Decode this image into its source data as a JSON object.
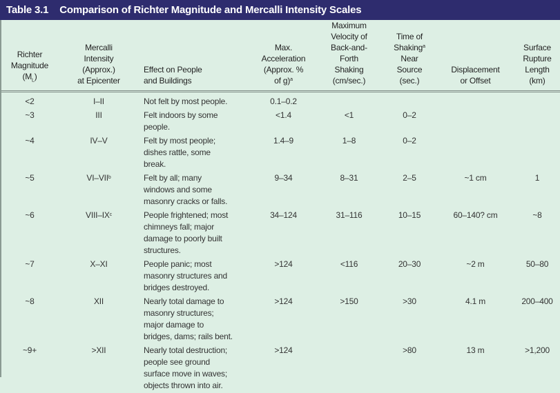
{
  "title": {
    "number": "Table 3.1",
    "text": "Comparison of Richter Magnitude and Mercalli Intensity Scales"
  },
  "headers": [
    {
      "label": "Richter\nMagnitude\n(M",
      "sub": "L",
      "after": ")"
    },
    {
      "label": "Mercalli\nIntensity\n(Approx.)\nat Epicenter"
    },
    {
      "label": "Effect on People\nand Buildings"
    },
    {
      "label": "Max.\nAcceleration\n(Approx. %\nof g)",
      "sup": "a"
    },
    {
      "label": "Maximum\nVelocity of\nBack-and-\nForth\nShaking\n(cm/sec.)"
    },
    {
      "label": "Time of\nShaking",
      "sup": "a",
      "after": "\nNear\nSource\n(sec.)"
    },
    {
      "label": "Displacement\nor Offset"
    },
    {
      "label": "Surface\nRupture\nLength\n(km)"
    }
  ],
  "rows": [
    {
      "richter": "<2",
      "mercalli": "I–II",
      "mercalli_sup": "",
      "effect": "Not felt by most people.",
      "accel": "0.1–0.2",
      "velocity": "",
      "time": "",
      "displacement": "",
      "rupture": ""
    },
    {
      "richter": "~3",
      "mercalli": "III",
      "mercalli_sup": "",
      "effect": "Felt indoors by some\npeople.",
      "accel": "<1.4",
      "velocity": "<1",
      "time": "0–2",
      "displacement": "",
      "rupture": ""
    },
    {
      "richter": "~4",
      "mercalli": "IV–V",
      "mercalli_sup": "",
      "effect": "Felt by most people;\ndishes rattle, some\nbreak.",
      "accel": "1.4–9",
      "velocity": "1–8",
      "time": "0–2",
      "displacement": "",
      "rupture": ""
    },
    {
      "richter": "~5",
      "mercalli": "VI–VII",
      "mercalli_sup": "b",
      "effect": "Felt by all; many\nwindows and some\nmasonry cracks or falls.",
      "accel": "9–34",
      "velocity": "8–31",
      "time": "2–5",
      "displacement": "~1 cm",
      "rupture": "1"
    },
    {
      "richter": "~6",
      "mercalli": "VIII–IX",
      "mercalli_sup": "c",
      "effect": "People frightened; most\nchimneys fall; major\ndamage to poorly built\nstructures.",
      "accel": "34–124",
      "velocity": "31–116",
      "time": "10–15",
      "displacement": "60–140? cm",
      "rupture": "~8"
    },
    {
      "richter": "~7",
      "mercalli": "X–XI",
      "mercalli_sup": "",
      "effect": "People panic; most\nmasonry structures and\nbridges destroyed.",
      "accel": ">124",
      "velocity": "<116",
      "time": "20–30",
      "displacement": "~2 m",
      "rupture": "50–80"
    },
    {
      "richter": "~8",
      "mercalli": "XII",
      "mercalli_sup": "",
      "effect": "Nearly total damage to\nmasonry structures;\nmajor damage to\nbridges, dams; rails bent.",
      "accel": ">124",
      "velocity": ">150",
      "time": ">30",
      "displacement": "4.1 m",
      "rupture": "200–400"
    },
    {
      "richter": "~9+",
      "mercalli": ">XII",
      "mercalli_sup": "",
      "effect": "Nearly total destruction;\npeople see ground\nsurface move in waves;\nobjects thrown into air.",
      "accel": ">124",
      "velocity": "",
      "time": ">80",
      "displacement": "13 m",
      "rupture": ">1,200"
    }
  ]
}
